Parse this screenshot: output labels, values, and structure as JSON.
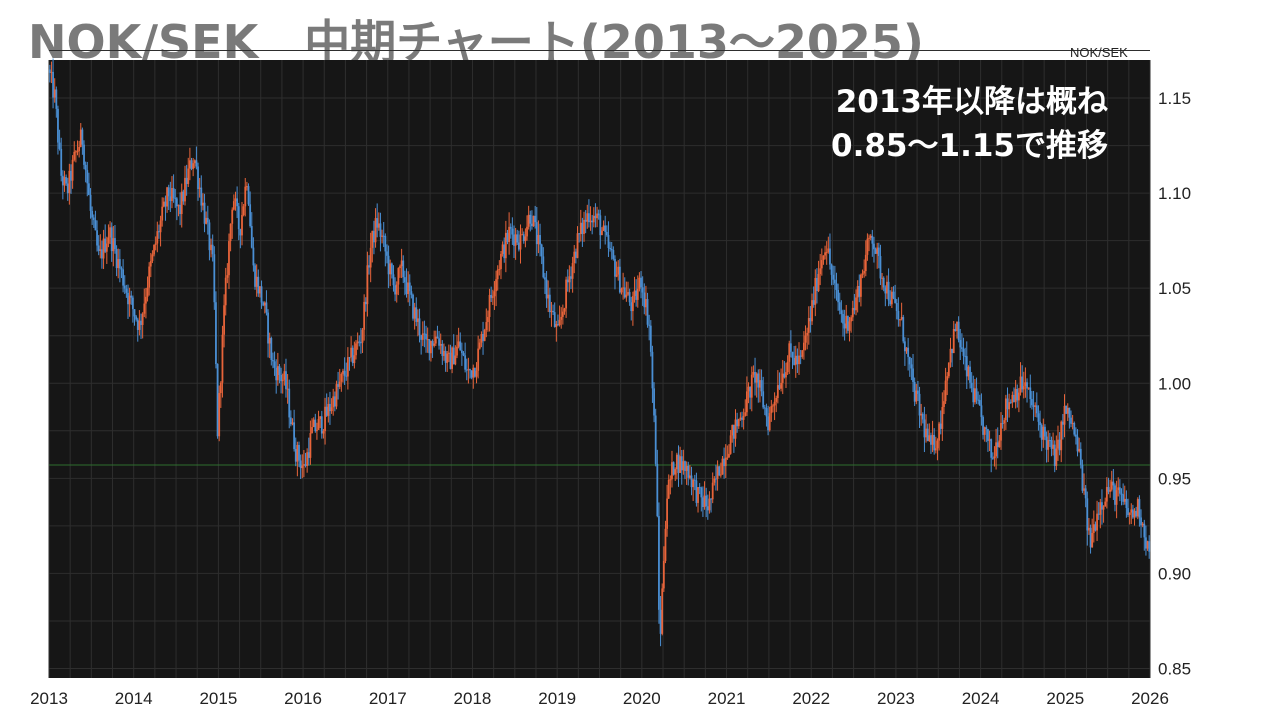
{
  "title": "NOK/SEK　中期チャート(2013～2025)",
  "chart_data": {
    "type": "candlestick",
    "symbol_label": "NOK/SEK",
    "annotation": [
      "2013年以降は概ね",
      "0.85～1.15で推移"
    ],
    "x_tick_labels": [
      "2013",
      "2014",
      "2015",
      "2016",
      "2017",
      "2018",
      "2019",
      "2020",
      "2021",
      "2022",
      "2023",
      "2024",
      "2025",
      "2026"
    ],
    "y_tick_labels": [
      "1.15",
      "1.10",
      "1.05",
      "1.00",
      "0.95",
      "0.90",
      "0.85"
    ],
    "y_ticks": [
      1.15,
      1.1,
      1.05,
      1.0,
      0.95,
      0.9,
      0.85
    ],
    "xlim": [
      2013.0,
      2026.0
    ],
    "ylim": [
      0.845,
      1.17
    ],
    "reference_line": 0.957,
    "grid": true,
    "colors": {
      "up": "#e8643a",
      "down": "#4a8fd4",
      "background": "#161616",
      "grid": "#2e2e2e",
      "reference": "#2f6f2f"
    },
    "path": [
      [
        2013.0,
        1.165
      ],
      [
        2013.08,
        1.15
      ],
      [
        2013.15,
        1.11
      ],
      [
        2013.22,
        1.1
      ],
      [
        2013.32,
        1.12
      ],
      [
        2013.4,
        1.13
      ],
      [
        2013.5,
        1.09
      ],
      [
        2013.6,
        1.065
      ],
      [
        2013.72,
        1.08
      ],
      [
        2013.85,
        1.06
      ],
      [
        2013.95,
        1.045
      ],
      [
        2014.08,
        1.03
      ],
      [
        2014.18,
        1.055
      ],
      [
        2014.3,
        1.08
      ],
      [
        2014.42,
        1.1
      ],
      [
        2014.55,
        1.09
      ],
      [
        2014.65,
        1.11
      ],
      [
        2014.72,
        1.12
      ],
      [
        2014.8,
        1.1
      ],
      [
        2014.88,
        1.08
      ],
      [
        2014.95,
        1.06
      ],
      [
        2015.0,
        0.975
      ],
      [
        2015.08,
        1.04
      ],
      [
        2015.18,
        1.1
      ],
      [
        2015.26,
        1.08
      ],
      [
        2015.35,
        1.11
      ],
      [
        2015.42,
        1.06
      ],
      [
        2015.55,
        1.04
      ],
      [
        2015.65,
        1.01
      ],
      [
        2015.8,
        1.0
      ],
      [
        2015.92,
        0.965
      ],
      [
        2016.02,
        0.955
      ],
      [
        2016.12,
        0.975
      ],
      [
        2016.25,
        0.98
      ],
      [
        2016.4,
        0.995
      ],
      [
        2016.55,
        1.01
      ],
      [
        2016.7,
        1.025
      ],
      [
        2016.8,
        1.07
      ],
      [
        2016.88,
        1.085
      ],
      [
        2016.95,
        1.075
      ],
      [
        2017.08,
        1.05
      ],
      [
        2017.18,
        1.06
      ],
      [
        2017.3,
        1.04
      ],
      [
        2017.45,
        1.02
      ],
      [
        2017.6,
        1.025
      ],
      [
        2017.72,
        1.01
      ],
      [
        2017.85,
        1.02
      ],
      [
        2017.95,
        1.005
      ],
      [
        2018.05,
        1.01
      ],
      [
        2018.15,
        1.03
      ],
      [
        2018.3,
        1.06
      ],
      [
        2018.45,
        1.08
      ],
      [
        2018.58,
        1.075
      ],
      [
        2018.7,
        1.09
      ],
      [
        2018.8,
        1.07
      ],
      [
        2018.92,
        1.04
      ],
      [
        2019.02,
        1.025
      ],
      [
        2019.12,
        1.05
      ],
      [
        2019.25,
        1.075
      ],
      [
        2019.38,
        1.09
      ],
      [
        2019.5,
        1.085
      ],
      [
        2019.62,
        1.07
      ],
      [
        2019.78,
        1.05
      ],
      [
        2019.9,
        1.04
      ],
      [
        2020.0,
        1.055
      ],
      [
        2020.1,
        1.03
      ],
      [
        2020.18,
        0.955
      ],
      [
        2020.22,
        0.86
      ],
      [
        2020.3,
        0.94
      ],
      [
        2020.4,
        0.96
      ],
      [
        2020.55,
        0.955
      ],
      [
        2020.68,
        0.94
      ],
      [
        2020.8,
        0.935
      ],
      [
        2020.92,
        0.955
      ],
      [
        2021.05,
        0.97
      ],
      [
        2021.2,
        0.985
      ],
      [
        2021.35,
        1.005
      ],
      [
        2021.5,
        0.98
      ],
      [
        2021.62,
        1.0
      ],
      [
        2021.75,
        1.015
      ],
      [
        2021.88,
        1.01
      ],
      [
        2022.0,
        1.035
      ],
      [
        2022.1,
        1.06
      ],
      [
        2022.18,
        1.075
      ],
      [
        2022.28,
        1.05
      ],
      [
        2022.4,
        1.03
      ],
      [
        2022.52,
        1.04
      ],
      [
        2022.62,
        1.06
      ],
      [
        2022.72,
        1.08
      ],
      [
        2022.82,
        1.06
      ],
      [
        2022.95,
        1.045
      ],
      [
        2023.08,
        1.03
      ],
      [
        2023.2,
        1.0
      ],
      [
        2023.32,
        0.98
      ],
      [
        2023.42,
        0.965
      ],
      [
        2023.52,
        0.975
      ],
      [
        2023.62,
        1.01
      ],
      [
        2023.72,
        1.03
      ],
      [
        2023.82,
        1.01
      ],
      [
        2023.92,
        0.995
      ],
      [
        2024.02,
        0.98
      ],
      [
        2024.15,
        0.96
      ],
      [
        2024.28,
        0.985
      ],
      [
        2024.4,
        0.995
      ],
      [
        2024.52,
        1.0
      ],
      [
        2024.65,
        0.985
      ],
      [
        2024.78,
        0.97
      ],
      [
        2024.9,
        0.96
      ],
      [
        2025.0,
        0.985
      ],
      [
        2025.08,
        0.98
      ],
      [
        2025.18,
        0.96
      ],
      [
        2025.3,
        0.915
      ],
      [
        2025.4,
        0.935
      ],
      [
        2025.52,
        0.945
      ],
      [
        2025.65,
        0.94
      ],
      [
        2025.78,
        0.93
      ],
      [
        2025.88,
        0.935
      ],
      [
        2026.0,
        0.91
      ]
    ]
  }
}
